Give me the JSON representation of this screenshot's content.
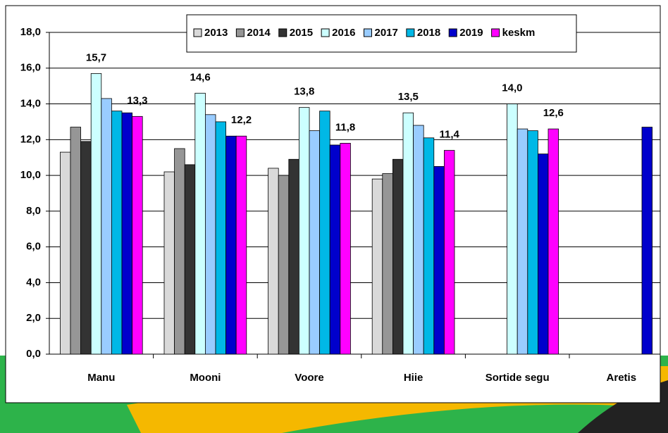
{
  "chart_data": {
    "type": "bar",
    "categories": [
      "Manu",
      "Mooni",
      "Voore",
      "Hiie",
      "Sortide segu",
      "Aretis"
    ],
    "series": [
      {
        "name": "2013",
        "color": "#d9d9d9",
        "values": [
          11.3,
          10.2,
          10.4,
          9.8,
          null,
          null
        ]
      },
      {
        "name": "2014",
        "color": "#969696",
        "values": [
          12.7,
          11.5,
          10.0,
          10.1,
          null,
          null
        ]
      },
      {
        "name": "2015",
        "color": "#333333",
        "values": [
          11.9,
          10.6,
          10.9,
          10.9,
          null,
          null
        ]
      },
      {
        "name": "2016",
        "color": "#ccffff",
        "values": [
          15.7,
          14.6,
          13.8,
          13.5,
          14.0,
          null
        ],
        "value_labels": [
          "15,7",
          "14,6",
          "13,8",
          "13,5",
          "14,0",
          null
        ]
      },
      {
        "name": "2017",
        "color": "#99ccff",
        "values": [
          14.3,
          13.4,
          12.5,
          12.8,
          12.6,
          null
        ]
      },
      {
        "name": "2018",
        "color": "#00b8e6",
        "values": [
          13.6,
          13.0,
          13.6,
          12.1,
          12.5,
          null
        ]
      },
      {
        "name": "2019",
        "color": "#0000cc",
        "values": [
          13.5,
          12.2,
          11.7,
          10.5,
          11.2,
          12.7
        ]
      },
      {
        "name": "keskm",
        "color": "#ff00ff",
        "values": [
          13.3,
          12.2,
          11.8,
          11.4,
          12.6,
          null
        ],
        "value_labels": [
          "13,3",
          "12,2",
          "11,8",
          "11,4",
          "12,6",
          null
        ]
      }
    ],
    "ylim": [
      0,
      18
    ],
    "yticks": [
      {
        "value": 0,
        "label": "0,0"
      },
      {
        "value": 2,
        "label": "2,0"
      },
      {
        "value": 4,
        "label": "4,0"
      },
      {
        "value": 6,
        "label": "6,0"
      },
      {
        "value": 8,
        "label": "8,0"
      },
      {
        "value": 10,
        "label": "10,0"
      },
      {
        "value": 12,
        "label": "12,0"
      },
      {
        "value": 14,
        "label": "14,0"
      },
      {
        "value": 16,
        "label": "16,0"
      },
      {
        "value": 18,
        "label": "18,0"
      }
    ],
    "grid": true,
    "legend": "top"
  }
}
